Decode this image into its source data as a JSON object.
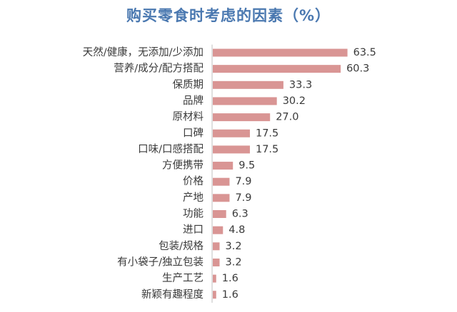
{
  "colors": {
    "bar": "#d99594",
    "axis": "#bfbfbf",
    "title": "#4a78b0",
    "text": "#3a3a3a"
  },
  "chart_data": {
    "type": "bar",
    "orientation": "horizontal",
    "title": "购买零食时考虑的因素（%）",
    "xlabel": "",
    "ylabel": "",
    "grid": false,
    "legend": "none",
    "xlim": [
      0,
      65
    ],
    "categories": [
      "天然/健康，无添加/少添加",
      "营养/成分/配方搭配",
      "保质期",
      "品牌",
      "原材料",
      "口碑",
      "口味/口感搭配",
      "方便携带",
      "价格",
      "产地",
      "功能",
      "进口",
      "包装/规格",
      "有小袋子/独立包装",
      "生产工艺",
      "新颖有趣程度"
    ],
    "values": [
      63.5,
      60.3,
      33.3,
      30.2,
      27.0,
      17.5,
      17.5,
      9.5,
      7.9,
      7.9,
      6.3,
      4.8,
      3.2,
      3.2,
      1.6,
      1.6
    ],
    "value_labels": [
      "63.5",
      "60.3",
      "33.3",
      "30.2",
      "27.0",
      "17.5",
      "17.5",
      "9.5",
      "7.9",
      "7.9",
      "6.3",
      "4.8",
      "3.2",
      "3.2",
      "1.6",
      "1.6"
    ]
  }
}
